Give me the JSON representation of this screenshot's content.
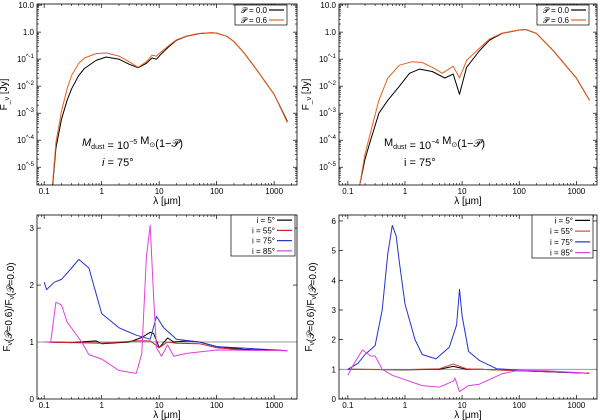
{
  "chart_data": [
    {
      "type": "line",
      "xscale": "log",
      "yscale": "log",
      "xlim": [
        0.075,
        2500
      ],
      "ylim": [
        2.2e-06,
        11
      ],
      "xticks": [
        {
          "v": 0.1,
          "label": "0.1"
        },
        {
          "v": 1,
          "label": "1"
        },
        {
          "v": 10,
          "label": "10"
        },
        {
          "v": 100,
          "label": "100"
        },
        {
          "v": 1000,
          "label": "1000"
        }
      ],
      "yticks": [
        {
          "v": 10,
          "label": "10.0"
        },
        {
          "v": 1,
          "label": "1.0"
        },
        {
          "v": 0.1,
          "label": "10^-1"
        },
        {
          "v": 0.01,
          "label": "10^-2"
        },
        {
          "v": 0.001,
          "label": "10^-3"
        },
        {
          "v": 0.0001,
          "label": "10^-4"
        },
        {
          "v": 1e-05,
          "label": "10^-5"
        }
      ],
      "xlabel": "λ [μm]",
      "ylabel": "F_ν [Jy]",
      "legend_placement": "top-right",
      "series": [
        {
          "name": "𝒫 = 0.0",
          "color": "#000000",
          "x": [
            0.14,
            0.16,
            0.2,
            0.25,
            0.3,
            0.4,
            0.5,
            0.8,
            1.2,
            2,
            3,
            4.3,
            6,
            7.5,
            9,
            11,
            15,
            20,
            30,
            50,
            80,
            100,
            150,
            200,
            300,
            500,
            1000,
            1700
          ],
          "y": [
            2e-06,
            5e-05,
            0.0006,
            0.003,
            0.008,
            0.025,
            0.045,
            0.09,
            0.12,
            0.1,
            0.065,
            0.048,
            0.07,
            0.11,
            0.1,
            0.16,
            0.3,
            0.5,
            0.7,
            0.88,
            0.95,
            0.92,
            0.7,
            0.45,
            0.17,
            0.04,
            0.005,
            0.0005
          ]
        },
        {
          "name": "𝒫 = 0.6",
          "color": "#e8601c",
          "x": [
            0.14,
            0.16,
            0.2,
            0.25,
            0.3,
            0.4,
            0.5,
            0.8,
            1.2,
            2,
            3,
            4.3,
            6,
            7.5,
            9,
            11,
            15,
            20,
            30,
            50,
            80,
            100,
            150,
            200,
            300,
            500,
            1000,
            1700
          ],
          "y": [
            2.5e-06,
            8e-05,
            0.0012,
            0.008,
            0.025,
            0.07,
            0.11,
            0.16,
            0.17,
            0.13,
            0.08,
            0.05,
            0.08,
            0.14,
            0.13,
            0.19,
            0.33,
            0.52,
            0.72,
            0.9,
            0.96,
            0.93,
            0.7,
            0.45,
            0.17,
            0.04,
            0.005,
            0.00045
          ]
        }
      ],
      "annotations": [
        {
          "parts": [
            {
              "t": "M",
              "italic": true
            },
            {
              "t": "dust",
              "sub": true
            },
            {
              "t": " = 10"
            },
            {
              "t": "−5",
              "sup": true
            },
            {
              "t": " M"
            },
            {
              "t": "⊙",
              "sub": true
            },
            {
              "t": "(1−𝒫)"
            }
          ]
        },
        {
          "parts": [
            {
              "t": "i",
              "italic": true
            },
            {
              "t": " = 75°"
            }
          ]
        }
      ]
    },
    {
      "type": "line",
      "xscale": "log",
      "yscale": "log",
      "xlim": [
        0.07,
        2300
      ],
      "ylim": [
        2.2e-06,
        11
      ],
      "xticks": [
        {
          "v": 0.1,
          "label": "0.1"
        },
        {
          "v": 1,
          "label": "1"
        },
        {
          "v": 10,
          "label": "10"
        },
        {
          "v": 100,
          "label": "100"
        },
        {
          "v": 1000,
          "label": "1000"
        }
      ],
      "yticks": [
        {
          "v": 10,
          "label": "10.0"
        },
        {
          "v": 1,
          "label": "1.0"
        },
        {
          "v": 0.1,
          "label": "10^-1"
        },
        {
          "v": 0.01,
          "label": "10^-2"
        },
        {
          "v": 0.001,
          "label": "10^-3"
        },
        {
          "v": 0.0001,
          "label": "10^-4"
        },
        {
          "v": 1e-05,
          "label": "10^-5"
        }
      ],
      "xlabel": "λ [μm]",
      "ylabel": "F_ν [Jy]",
      "legend_placement": "top-right",
      "series": [
        {
          "name": "𝒫 = 0.0",
          "color": "#000000",
          "x": [
            0.16,
            0.2,
            0.25,
            0.35,
            0.5,
            0.8,
            1.2,
            1.8,
            3,
            5,
            7,
            9,
            12,
            20,
            30,
            50,
            100,
            130,
            200,
            400,
            1000,
            1700
          ],
          "y": [
            2e-06,
            2e-05,
            0.0001,
            0.001,
            0.003,
            0.01,
            0.03,
            0.043,
            0.035,
            0.02,
            0.028,
            0.005,
            0.05,
            0.2,
            0.5,
            0.9,
            1.2,
            1.25,
            0.9,
            0.2,
            0.02,
            0.003
          ]
        },
        {
          "name": "𝒫 = 0.6",
          "color": "#e8601c",
          "x": [
            0.16,
            0.2,
            0.25,
            0.35,
            0.5,
            0.8,
            1.3,
            2,
            3,
            4.5,
            7,
            9,
            12,
            20,
            30,
            50,
            100,
            130,
            200,
            400,
            1000,
            1700
          ],
          "y": [
            2e-06,
            3e-05,
            0.0002,
            0.003,
            0.02,
            0.06,
            0.08,
            0.075,
            0.05,
            0.03,
            0.055,
            0.02,
            0.09,
            0.25,
            0.55,
            0.92,
            1.2,
            1.25,
            0.9,
            0.2,
            0.02,
            0.003
          ]
        }
      ],
      "annotations": [
        {
          "parts": [
            {
              "t": "M"
            },
            {
              "t": "dust",
              "sub": true
            },
            {
              "t": " = 10"
            },
            {
              "t": "−4",
              "sup": true
            },
            {
              "t": " M"
            },
            {
              "t": "⊙",
              "sub": true
            },
            {
              "t": "(1−𝒫)"
            }
          ]
        },
        {
          "parts": [
            {
              "t": "i = 75°"
            }
          ]
        }
      ]
    },
    {
      "type": "line",
      "xscale": "log",
      "yscale": "linear",
      "xlim": [
        0.075,
        2500
      ],
      "ylim": [
        0,
        3.23
      ],
      "xticks": [
        {
          "v": 0.1,
          "label": "0.1"
        },
        {
          "v": 1,
          "label": "1"
        },
        {
          "v": 10,
          "label": "10"
        },
        {
          "v": 100,
          "label": "100"
        },
        {
          "v": 1000,
          "label": "1000"
        }
      ],
      "yticks": [
        {
          "v": 0,
          "label": "0"
        },
        {
          "v": 1,
          "label": "1"
        },
        {
          "v": 2,
          "label": "2"
        },
        {
          "v": 3,
          "label": "3"
        }
      ],
      "xlabel": "λ [μm]",
      "ylabel": "F_ν(𝒫=0.6)/F_ν(𝒫=0.0)",
      "reference_line": 1,
      "legend_placement": "top-right",
      "series": [
        {
          "name": "i =  5°",
          "color": "#000000",
          "x": [
            0.1,
            0.3,
            0.8,
            1,
            3,
            5,
            7,
            8,
            10,
            14,
            18,
            30,
            50,
            100,
            300,
            1700
          ],
          "y": [
            1,
            0.99,
            1.02,
            0.97,
            1.0,
            1.08,
            1.17,
            1.15,
            0.9,
            1.07,
            1.0,
            1.02,
            1.0,
            0.92,
            0.87,
            0.85
          ]
        },
        {
          "name": "i = 55°",
          "color": "#cc2222",
          "x": [
            0.1,
            1,
            4,
            7,
            10,
            14,
            20,
            50,
            100,
            300,
            1700
          ],
          "y": [
            1,
            0.98,
            1.02,
            1.02,
            0.9,
            1.0,
            0.98,
            0.97,
            0.9,
            0.86,
            0.85
          ]
        },
        {
          "name": "i = 75°",
          "color": "#2233cc",
          "x": [
            0.1,
            0.11,
            0.15,
            0.2,
            0.3,
            0.4,
            0.6,
            1,
            2,
            4,
            7,
            9,
            12,
            20,
            50,
            100,
            1700
          ],
          "y": [
            2.05,
            1.92,
            2.05,
            2.1,
            2.3,
            2.45,
            2.3,
            1.5,
            1.25,
            1.12,
            1.05,
            1.45,
            1.25,
            1.05,
            1.0,
            0.92,
            0.85
          ]
        },
        {
          "name": "i = 85°",
          "color": "#e040e0",
          "x": [
            0.1,
            0.13,
            0.16,
            0.2,
            0.25,
            0.35,
            0.45,
            0.6,
            1,
            2,
            4,
            5,
            6,
            7,
            8,
            9,
            11,
            14,
            18,
            30,
            100,
            1700
          ],
          "y": [
            1.0,
            1.0,
            1.7,
            1.65,
            1.35,
            1.15,
            1.0,
            0.78,
            0.7,
            0.5,
            0.45,
            0.8,
            2.5,
            3.05,
            1.8,
            0.9,
            0.75,
            0.95,
            0.75,
            0.8,
            0.86,
            0.85
          ]
        }
      ]
    },
    {
      "type": "line",
      "xscale": "log",
      "yscale": "linear",
      "xlim": [
        0.07,
        2300
      ],
      "ylim": [
        0,
        6.2
      ],
      "xticks": [
        {
          "v": 0.1,
          "label": "0.1"
        },
        {
          "v": 1,
          "label": "1"
        },
        {
          "v": 10,
          "label": "10"
        },
        {
          "v": 100,
          "label": "100"
        },
        {
          "v": 1000,
          "label": "1000"
        }
      ],
      "yticks": [
        {
          "v": 0,
          "label": "0"
        },
        {
          "v": 1,
          "label": "1"
        },
        {
          "v": 2,
          "label": "2"
        },
        {
          "v": 3,
          "label": "3"
        },
        {
          "v": 4,
          "label": "4"
        },
        {
          "v": 5,
          "label": "5"
        },
        {
          "v": 6,
          "label": "6"
        }
      ],
      "xlabel": "λ [μm]",
      "ylabel": "F_ν(𝒫=0.6)/F_ν(𝒫=0.0)",
      "reference_line": 1,
      "legend_placement": "top-right",
      "series": [
        {
          "name": "i =  5°",
          "color": "#000000",
          "x": [
            0.1,
            1,
            4,
            7,
            9,
            12,
            20,
            100,
            1700
          ],
          "y": [
            1,
            0.98,
            1.0,
            1.1,
            1.05,
            1.0,
            1.0,
            0.95,
            0.87
          ]
        },
        {
          "name": "i = 55°",
          "color": "#dd4444",
          "x": [
            0.1,
            1,
            4,
            7,
            9,
            12,
            20,
            100,
            1700
          ],
          "y": [
            1,
            0.99,
            1.02,
            1.18,
            1.1,
            1.02,
            1.0,
            0.95,
            0.87
          ]
        },
        {
          "name": "i = 75°",
          "color": "#2233cc",
          "x": [
            0.1,
            0.15,
            0.2,
            0.3,
            0.4,
            0.5,
            0.6,
            0.7,
            0.8,
            1,
            1.5,
            2,
            3.5,
            6,
            8,
            9,
            10,
            13,
            20,
            40,
            100,
            1700
          ],
          "y": [
            1.0,
            1.2,
            1.5,
            1.8,
            3.0,
            4.9,
            5.85,
            5.5,
            4.6,
            3.2,
            2.0,
            1.5,
            1.35,
            1.75,
            2.5,
            3.7,
            2.8,
            1.6,
            1.3,
            1.02,
            0.97,
            0.87
          ]
        },
        {
          "name": "i = 85°",
          "color": "#e040e0",
          "x": [
            0.1,
            0.12,
            0.18,
            0.25,
            0.3,
            0.4,
            0.6,
            1,
            2,
            4,
            7,
            7.5,
            9,
            13,
            20,
            50,
            100,
            300,
            1700
          ],
          "y": [
            0.8,
            1.1,
            1.65,
            1.45,
            1.45,
            1.0,
            0.8,
            0.65,
            0.45,
            0.4,
            0.6,
            0.7,
            0.25,
            0.45,
            0.5,
            0.85,
            0.97,
            0.95,
            0.87
          ]
        }
      ]
    }
  ]
}
